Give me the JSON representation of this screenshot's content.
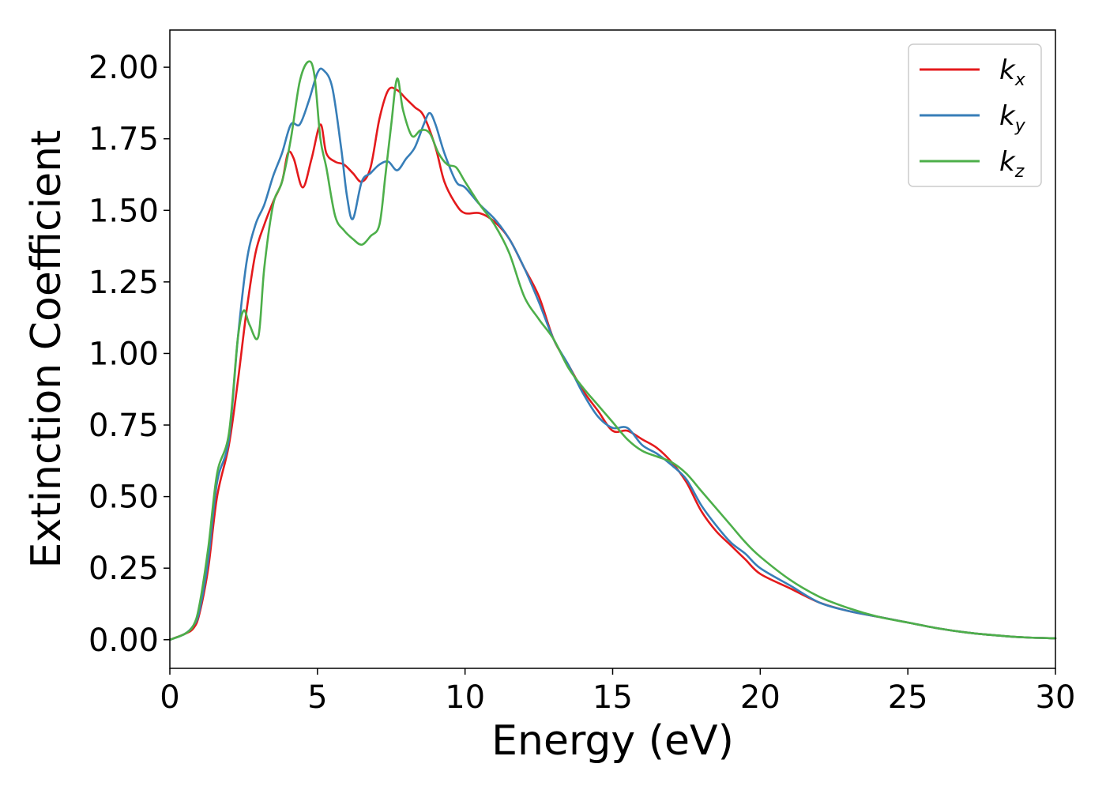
{
  "chart_data": {
    "type": "line",
    "title": "",
    "xlabel": "Energy (eV)",
    "ylabel": "Extinction Coefficient",
    "xlim": [
      0,
      30
    ],
    "ylim": [
      -0.1,
      2.13
    ],
    "xticks": [
      0,
      5,
      10,
      15,
      20,
      25,
      30
    ],
    "xtick_labels": [
      "0",
      "5",
      "10",
      "15",
      "20",
      "25",
      "30"
    ],
    "yticks": [
      0.0,
      0.25,
      0.5,
      0.75,
      1.0,
      1.25,
      1.5,
      1.75,
      2.0
    ],
    "ytick_labels": [
      "0.00",
      "0.25",
      "0.50",
      "0.75",
      "1.00",
      "1.25",
      "1.50",
      "1.75",
      "2.00"
    ],
    "grid": false,
    "legend_position": "top-right",
    "series": [
      {
        "name": "kx",
        "base": "k",
        "sub": "x",
        "color": "#e41a1c",
        "x": [
          0,
          0.5,
          0.8,
          1.0,
          1.3,
          1.6,
          2.0,
          2.3,
          2.6,
          2.9,
          3.2,
          3.5,
          3.8,
          4.0,
          4.2,
          4.5,
          4.8,
          5.1,
          5.3,
          5.6,
          5.9,
          6.2,
          6.5,
          6.8,
          7.1,
          7.4,
          7.7,
          8.0,
          8.3,
          8.6,
          9.0,
          9.3,
          9.7,
          10.0,
          10.5,
          11.0,
          11.5,
          12.0,
          12.5,
          13.0,
          13.5,
          14.0,
          14.5,
          15.0,
          15.5,
          16.0,
          16.5,
          17.0,
          17.5,
          18.0,
          18.5,
          19.0,
          19.5,
          20.0,
          21.0,
          22.0,
          23.0,
          24.0,
          25.0,
          26.0,
          27.0,
          28.0,
          29.0,
          30.0
        ],
        "y": [
          0.0,
          0.02,
          0.04,
          0.09,
          0.25,
          0.5,
          0.68,
          0.9,
          1.15,
          1.35,
          1.45,
          1.53,
          1.6,
          1.7,
          1.68,
          1.58,
          1.68,
          1.8,
          1.7,
          1.67,
          1.66,
          1.63,
          1.6,
          1.65,
          1.82,
          1.92,
          1.92,
          1.89,
          1.86,
          1.83,
          1.72,
          1.6,
          1.52,
          1.49,
          1.49,
          1.46,
          1.4,
          1.3,
          1.2,
          1.05,
          0.96,
          0.87,
          0.8,
          0.73,
          0.73,
          0.7,
          0.67,
          0.62,
          0.55,
          0.45,
          0.38,
          0.33,
          0.28,
          0.23,
          0.18,
          0.13,
          0.1,
          0.08,
          0.06,
          0.04,
          0.025,
          0.015,
          0.008,
          0.005
        ]
      },
      {
        "name": "ky",
        "base": "k",
        "sub": "y",
        "color": "#377eb8",
        "x": [
          0,
          0.5,
          0.8,
          1.0,
          1.3,
          1.6,
          2.0,
          2.3,
          2.6,
          2.9,
          3.2,
          3.5,
          3.8,
          4.1,
          4.4,
          4.7,
          5.0,
          5.2,
          5.5,
          5.8,
          6.0,
          6.2,
          6.5,
          6.8,
          7.1,
          7.4,
          7.7,
          8.0,
          8.3,
          8.6,
          8.8,
          9.0,
          9.3,
          9.7,
          10.0,
          10.5,
          11.0,
          11.5,
          12.0,
          12.5,
          13.0,
          13.5,
          14.0,
          14.5,
          15.0,
          15.5,
          16.0,
          16.5,
          17.0,
          17.5,
          18.0,
          18.5,
          19.0,
          19.5,
          20.0,
          21.0,
          22.0,
          23.0,
          24.0,
          25.0,
          26.0,
          27.0,
          28.0,
          29.0,
          30.0
        ],
        "y": [
          0.0,
          0.02,
          0.05,
          0.1,
          0.28,
          0.55,
          0.7,
          1.05,
          1.32,
          1.45,
          1.52,
          1.62,
          1.7,
          1.8,
          1.8,
          1.88,
          1.98,
          1.99,
          1.93,
          1.72,
          1.55,
          1.47,
          1.6,
          1.63,
          1.66,
          1.67,
          1.64,
          1.68,
          1.72,
          1.8,
          1.84,
          1.8,
          1.7,
          1.6,
          1.58,
          1.52,
          1.47,
          1.4,
          1.3,
          1.18,
          1.05,
          0.96,
          0.86,
          0.78,
          0.74,
          0.74,
          0.68,
          0.65,
          0.61,
          0.56,
          0.47,
          0.4,
          0.34,
          0.3,
          0.25,
          0.19,
          0.13,
          0.1,
          0.08,
          0.06,
          0.04,
          0.025,
          0.015,
          0.008,
          0.005
        ]
      },
      {
        "name": "kz",
        "base": "k",
        "sub": "z",
        "color": "#4daf4a",
        "x": [
          0,
          0.5,
          0.8,
          1.0,
          1.3,
          1.6,
          2.0,
          2.3,
          2.5,
          2.7,
          3.0,
          3.2,
          3.5,
          3.8,
          4.1,
          4.4,
          4.7,
          4.9,
          5.1,
          5.3,
          5.6,
          5.9,
          6.2,
          6.5,
          6.8,
          7.1,
          7.3,
          7.5,
          7.7,
          7.9,
          8.2,
          8.5,
          8.8,
          9.1,
          9.4,
          9.7,
          10.0,
          10.5,
          11.0,
          11.5,
          12.0,
          12.5,
          13.0,
          13.5,
          14.0,
          14.5,
          15.0,
          15.5,
          16.0,
          16.5,
          17.0,
          17.5,
          18.0,
          18.5,
          19.0,
          19.5,
          20.0,
          21.0,
          22.0,
          23.0,
          24.0,
          25.0,
          26.0,
          27.0,
          28.0,
          29.0,
          30.0
        ],
        "y": [
          0.0,
          0.02,
          0.05,
          0.12,
          0.32,
          0.58,
          0.72,
          1.05,
          1.15,
          1.1,
          1.06,
          1.3,
          1.52,
          1.6,
          1.75,
          1.95,
          2.02,
          1.97,
          1.75,
          1.65,
          1.48,
          1.43,
          1.4,
          1.38,
          1.41,
          1.45,
          1.62,
          1.8,
          1.96,
          1.85,
          1.76,
          1.78,
          1.77,
          1.7,
          1.66,
          1.65,
          1.6,
          1.52,
          1.45,
          1.35,
          1.2,
          1.12,
          1.05,
          0.95,
          0.88,
          0.82,
          0.76,
          0.7,
          0.66,
          0.64,
          0.62,
          0.58,
          0.52,
          0.46,
          0.4,
          0.34,
          0.29,
          0.21,
          0.15,
          0.11,
          0.08,
          0.06,
          0.04,
          0.025,
          0.015,
          0.008,
          0.005
        ]
      }
    ]
  }
}
